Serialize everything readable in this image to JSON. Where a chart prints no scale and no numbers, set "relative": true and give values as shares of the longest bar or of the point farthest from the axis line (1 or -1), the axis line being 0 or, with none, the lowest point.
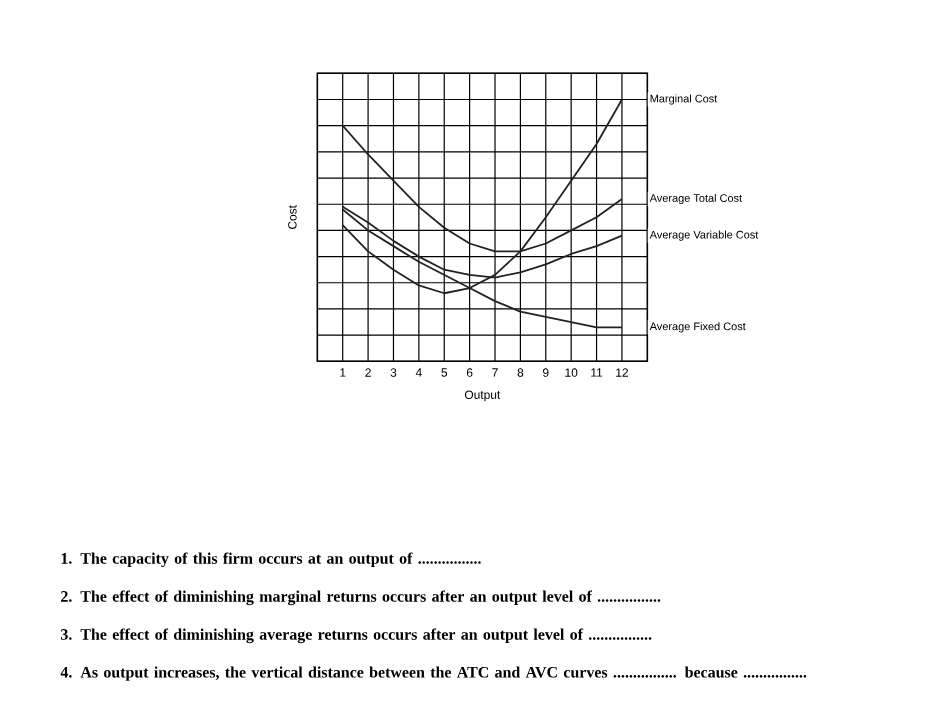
{
  "chart_data": {
    "type": "line",
    "relative": true,
    "xlabel": "Output",
    "ylabel": "Cost",
    "x": [
      1,
      2,
      3,
      4,
      5,
      6,
      7,
      8,
      9,
      10,
      11,
      12
    ],
    "xlim": [
      0,
      13
    ],
    "xticks": [
      1,
      2,
      3,
      4,
      5,
      6,
      7,
      8,
      9,
      10,
      11,
      12
    ],
    "grid": true,
    "legend": false,
    "marker": "none",
    "line_style": "solid",
    "series": [
      {
        "name": "Marginal Cost",
        "color": "#222222",
        "values": [
          0.52,
          0.42,
          0.35,
          0.29,
          0.26,
          0.28,
          0.33,
          0.42,
          0.55,
          0.69,
          0.83,
          1.0
        ]
      },
      {
        "name": "Average Total Cost",
        "color": "#222222",
        "values": [
          0.9,
          0.79,
          0.69,
          0.59,
          0.51,
          0.45,
          0.42,
          0.42,
          0.45,
          0.5,
          0.55,
          0.62
        ]
      },
      {
        "name": "Average Variable Cost",
        "color": "#222222",
        "values": [
          0.59,
          0.53,
          0.46,
          0.4,
          0.35,
          0.33,
          0.32,
          0.34,
          0.37,
          0.41,
          0.44,
          0.48
        ]
      },
      {
        "name": "Average Fixed Cost",
        "color": "#222222",
        "values": [
          0.58,
          0.5,
          0.44,
          0.38,
          0.33,
          0.28,
          0.23,
          0.19,
          0.17,
          0.15,
          0.13,
          0.13
        ]
      }
    ],
    "annotations": [
      "1. The capacity of this firm occurs at an output of ................",
      "2. The effect of diminishing marginal returns occurs after an output level of ................",
      "3. The effect of diminishing average returns occurs after an output level of ................",
      "4. As output increases, the vertical distance between the ATC and AVC curves ................ because ................"
    ]
  }
}
